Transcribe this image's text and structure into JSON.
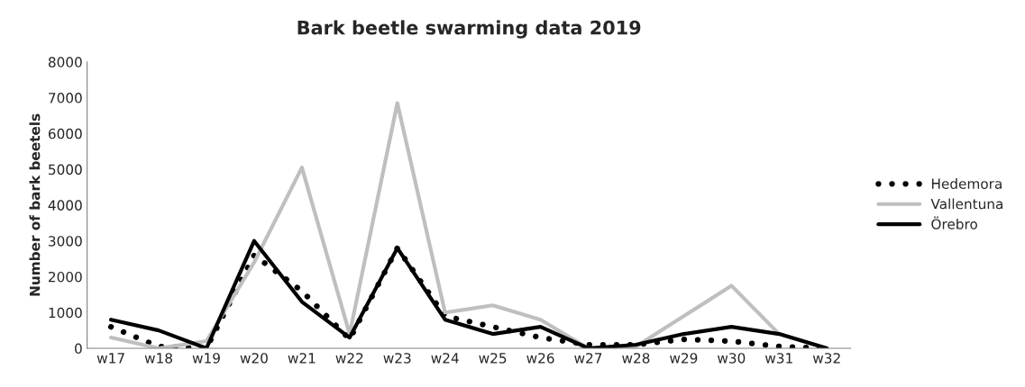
{
  "chart_data": {
    "type": "line",
    "title": "Bark beetle swarming data 2019",
    "ylabel": "Number of bark beetels",
    "categories": [
      "w17",
      "w18",
      "w19",
      "w20",
      "w21",
      "w22",
      "w23",
      "w24",
      "w25",
      "w26",
      "w27",
      "w28",
      "w29",
      "w30",
      "w31",
      "w32"
    ],
    "series": [
      {
        "name": "Hedemora",
        "color": "#000000",
        "line_style": "dotted",
        "values": [
          600,
          50,
          0,
          2600,
          1600,
          250,
          2800,
          900,
          600,
          300,
          100,
          100,
          250,
          200,
          50,
          0
        ]
      },
      {
        "name": "Vallentuna",
        "color": "#bfbfbf",
        "line_style": "solid",
        "values": [
          300,
          0,
          200,
          2400,
          5050,
          400,
          6850,
          1000,
          1200,
          800,
          0,
          50,
          900,
          1750,
          400,
          0
        ]
      },
      {
        "name": "Örebro",
        "color": "#000000",
        "line_style": "solid",
        "values": [
          800,
          500,
          0,
          3000,
          1300,
          300,
          2800,
          800,
          400,
          600,
          0,
          100,
          400,
          600,
          400,
          0
        ]
      }
    ],
    "ylim": [
      0,
      8000
    ],
    "yticks": [
      0,
      1000,
      2000,
      3000,
      4000,
      5000,
      6000,
      7000,
      8000
    ],
    "grid": false,
    "legend": "right",
    "marker": "none"
  }
}
